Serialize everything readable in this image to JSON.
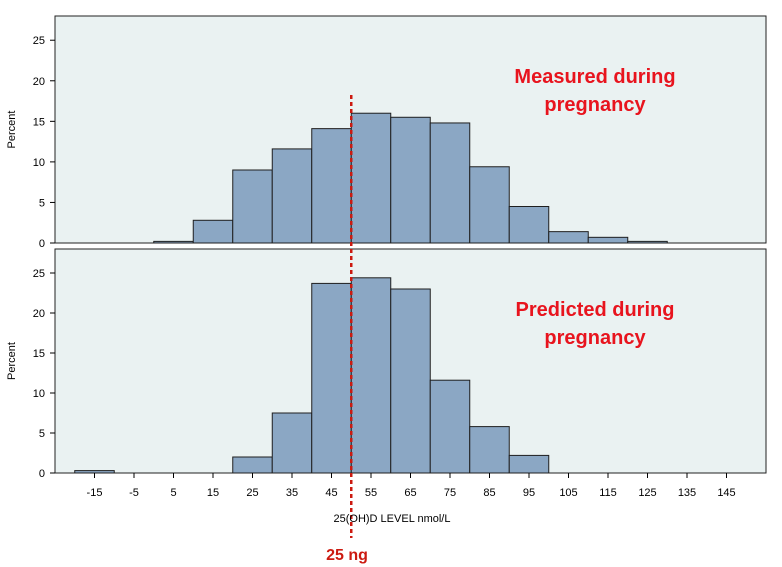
{
  "chart_data": {
    "type": "bar",
    "bin_width": 10,
    "bin_starts": [
      -20,
      -10,
      0,
      10,
      20,
      30,
      40,
      50,
      60,
      70,
      80,
      90,
      100,
      110,
      120,
      130,
      140
    ],
    "xlim": [
      -25,
      155
    ],
    "xticks": [
      -15,
      -5,
      5,
      15,
      25,
      35,
      45,
      55,
      65,
      75,
      85,
      95,
      105,
      115,
      125,
      135,
      145
    ],
    "xtick_labels": [
      "-15",
      "-5",
      "5",
      "15",
      "25",
      "35",
      "45",
      "55",
      "65",
      "75",
      "85",
      "95",
      "105",
      "115",
      "125",
      "135",
      "145"
    ],
    "xlabel": "25(OH)D LEVEL nmol/L",
    "reference_line": {
      "x": 50,
      "label": "25 ng",
      "color": "#cc1a10"
    },
    "panels": [
      {
        "name": "Measured",
        "annotation": [
          "Measured during",
          "pregnancy"
        ],
        "ylabel": "Percent",
        "ylim": [
          0,
          27
        ],
        "yticks": [
          0,
          5,
          10,
          15,
          20,
          25
        ],
        "ytick_labels": [
          "0",
          "5",
          "10",
          "15",
          "20",
          "25"
        ],
        "values": [
          0,
          0,
          0.2,
          2.8,
          9.0,
          11.6,
          14.1,
          16.0,
          15.5,
          14.8,
          9.4,
          4.5,
          1.4,
          0.7,
          0.2,
          0,
          0
        ]
      },
      {
        "name": "Predicted",
        "annotation": [
          "Predicted during",
          "pregnancy"
        ],
        "ylabel": "Percent",
        "ylim": [
          0,
          27
        ],
        "yticks": [
          0,
          5,
          10,
          15,
          20,
          25
        ],
        "ytick_labels": [
          "0",
          "5",
          "10",
          "15",
          "20",
          "25"
        ],
        "values": [
          0.3,
          0,
          0,
          0,
          2.0,
          7.5,
          23.7,
          24.4,
          23.0,
          11.6,
          5.8,
          2.2,
          0,
          0,
          0,
          0,
          0
        ]
      }
    ],
    "colors": {
      "bar_fill": "#8ba7c4",
      "bar_stroke": "#1f1f1f",
      "panel_bg": "#eaf2f2",
      "annotation": "#e8141e",
      "reference": "#cc1a10"
    }
  }
}
